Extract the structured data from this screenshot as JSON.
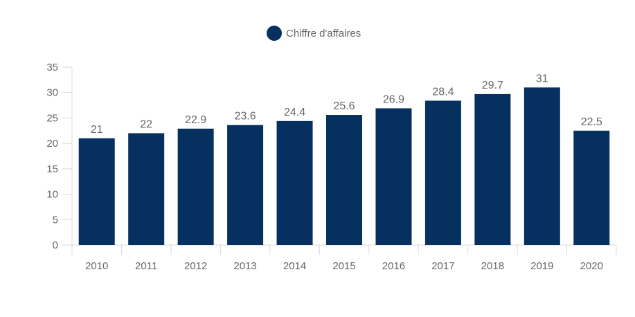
{
  "chart_data": {
    "type": "bar",
    "categories": [
      "2010",
      "2011",
      "2012",
      "2013",
      "2014",
      "2015",
      "2016",
      "2017",
      "2018",
      "2019",
      "2020"
    ],
    "series": [
      {
        "name": "Chiffre d'affaires",
        "values": [
          21,
          22,
          22.9,
          23.6,
          24.4,
          25.6,
          26.9,
          28.4,
          29.7,
          31,
          22.5
        ],
        "color": "#06305f"
      }
    ],
    "data_labels": [
      "21",
      "22",
      "22.9",
      "23.6",
      "24.4",
      "25.6",
      "26.9",
      "28.4",
      "29.7",
      "31",
      "22.5"
    ],
    "y_ticks": [
      "0",
      "5",
      "10",
      "15",
      "20",
      "25",
      "30",
      "35"
    ],
    "ylim": [
      0,
      35
    ],
    "grid": false,
    "legend_position": "top-center",
    "title": "",
    "xlabel": "",
    "ylabel": ""
  },
  "colors": {
    "bar": "#06305f",
    "axis": "#d9d9d9",
    "text": "#666666"
  }
}
